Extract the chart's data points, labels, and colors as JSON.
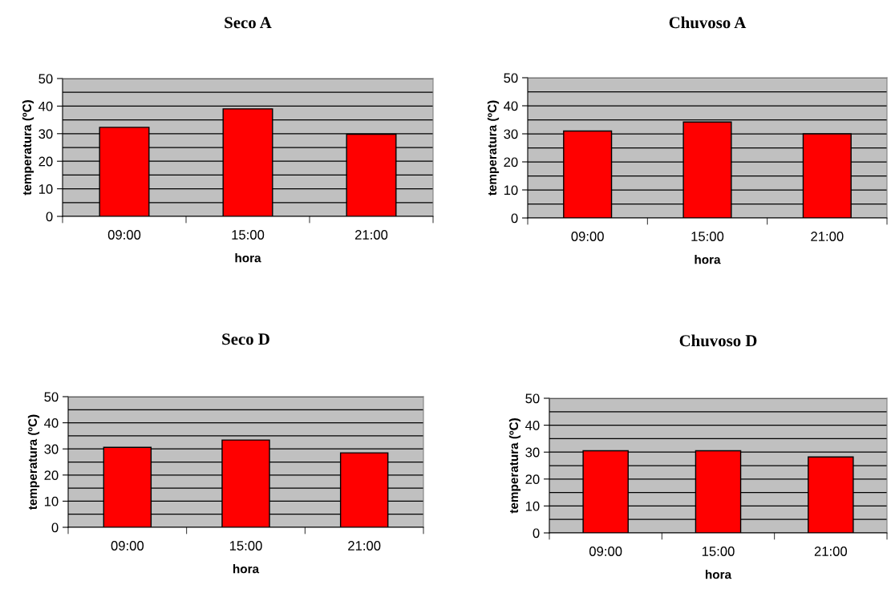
{
  "chart_data": [
    {
      "type": "bar",
      "title": "Seco A",
      "xlabel": "hora",
      "ylabel": "temperatura (ºC)",
      "categories": [
        "09:00",
        "15:00",
        "21:00"
      ],
      "values": [
        32.3,
        39,
        29.8
      ],
      "color": "#ff0000",
      "ylim": [
        0,
        50
      ],
      "yticks": [
        0,
        {
          "value": 5,
          "label": null
        },
        10,
        {
          "value": 15,
          "label": null
        },
        20,
        {
          "value": 25,
          "label": null
        },
        30,
        {
          "value": 35,
          "label": null
        },
        40,
        {
          "value": 45,
          "label": null
        },
        50
      ],
      "grid": "y"
    },
    {
      "type": "bar",
      "title": "Chuvoso A",
      "xlabel": "hora",
      "ylabel": "temperatura (ºC)",
      "categories": [
        "09:00",
        "15:00",
        "21:00"
      ],
      "values": [
        31,
        34.2,
        30
      ],
      "color": "#ff0000",
      "ylim": [
        0,
        50
      ],
      "yticks": [
        0,
        {
          "value": 5,
          "label": null
        },
        10,
        {
          "value": 15,
          "label": null
        },
        20,
        {
          "value": 25,
          "label": null
        },
        30,
        {
          "value": 35,
          "label": null
        },
        40,
        {
          "value": 45,
          "label": null
        },
        50
      ],
      "grid": "y"
    },
    {
      "type": "bar",
      "title": "Seco D",
      "xlabel": "hora",
      "ylabel": "temperatura (ºC)",
      "categories": [
        "09:00",
        "15:00",
        "21:00"
      ],
      "values": [
        30.6,
        33.4,
        28.5
      ],
      "color": "#ff0000",
      "ylim": [
        0,
        50
      ],
      "yticks": [
        0,
        {
          "value": 5,
          "label": null
        },
        10,
        {
          "value": 15,
          "label": null
        },
        20,
        {
          "value": 25,
          "label": null
        },
        30,
        {
          "value": 35,
          "label": null
        },
        40,
        {
          "value": 45,
          "label": null
        },
        50
      ],
      "grid": "y"
    },
    {
      "type": "bar",
      "title": "Chuvoso D",
      "xlabel": "hora",
      "ylabel": "temperatura (ºC)",
      "categories": [
        "09:00",
        "15:00",
        "21:00"
      ],
      "values": [
        30.5,
        30.5,
        28.2
      ],
      "color": "#ff0000",
      "ylim": [
        0,
        50
      ],
      "yticks": [
        0,
        {
          "value": 5,
          "label": null
        },
        10,
        {
          "value": 15,
          "label": null
        },
        20,
        {
          "value": 25,
          "label": null
        },
        30,
        {
          "value": 35,
          "label": null
        },
        40,
        {
          "value": 45,
          "label": null
        },
        50
      ],
      "grid": "y"
    }
  ]
}
